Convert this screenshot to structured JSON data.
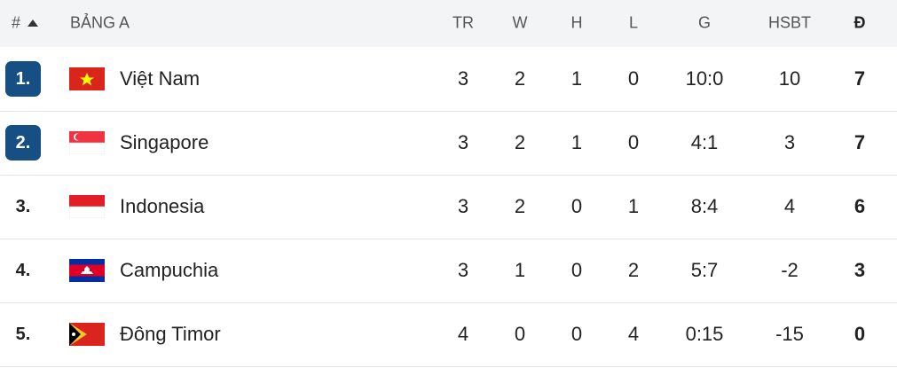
{
  "header": {
    "rank": "#",
    "group": "BẢNG A",
    "columns": [
      "TR",
      "W",
      "H",
      "L",
      "G",
      "HSBT",
      "Đ"
    ]
  },
  "table": {
    "rows": [
      {
        "rank": "1.",
        "team": "Việt Nam",
        "stats": [
          3,
          2,
          1,
          0,
          "10:0",
          10,
          7
        ]
      },
      {
        "rank": "2.",
        "team": "Singapore",
        "stats": [
          3,
          2,
          1,
          0,
          "4:1",
          3,
          7
        ]
      },
      {
        "rank": "3.",
        "team": "Indonesia",
        "stats": [
          3,
          2,
          0,
          1,
          "8:4",
          4,
          6
        ]
      },
      {
        "rank": "4.",
        "team": "Campuchia",
        "stats": [
          3,
          1,
          0,
          2,
          "5:7",
          -2,
          3
        ]
      },
      {
        "rank": "5.",
        "team": "Đông Timor",
        "stats": [
          4,
          0,
          0,
          4,
          "0:15",
          -15,
          0
        ]
      }
    ]
  }
}
